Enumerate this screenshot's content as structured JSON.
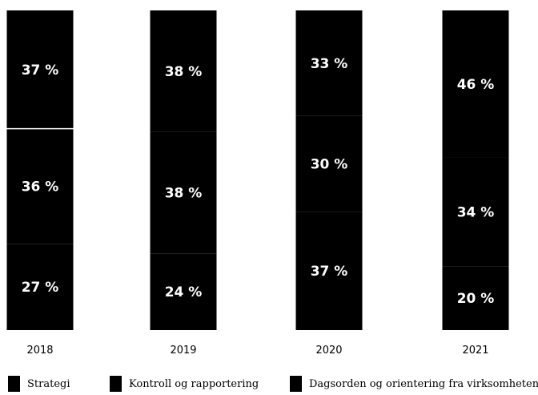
{
  "chart_data": {
    "type": "bar",
    "stacked": true,
    "normalized": true,
    "title": "",
    "xlabel": "",
    "ylabel": "",
    "categories": [
      "2018",
      "2019",
      "2020",
      "2021"
    ],
    "series": [
      {
        "name": "Strategi",
        "values": [
          27,
          24,
          37,
          20
        ],
        "labels": [
          "27 %",
          "24 %",
          "37 %",
          "20 %"
        ],
        "color": "#000000"
      },
      {
        "name": "Kontroll og rapportering",
        "values": [
          36,
          38,
          30,
          34
        ],
        "labels": [
          "36 %",
          "38 %",
          "30 %",
          "34 %"
        ],
        "color": "#000000"
      },
      {
        "name": "Dagsorden og orientering fra virksomheten",
        "values": [
          37,
          38,
          33,
          46
        ],
        "labels": [
          "37 %",
          "38 %",
          "33 %",
          "46 %"
        ],
        "color": "#000000"
      }
    ],
    "ylim": [
      0,
      100
    ],
    "grid": false,
    "legend": "bottom"
  }
}
